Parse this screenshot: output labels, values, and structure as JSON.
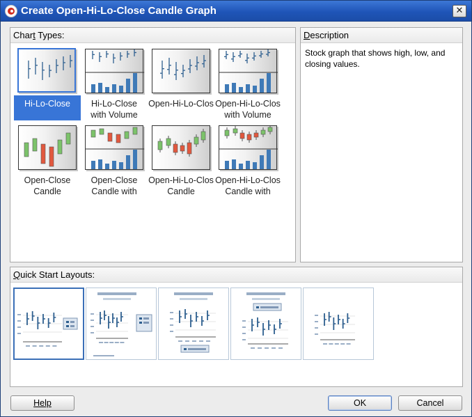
{
  "window": {
    "title": "Create Open-Hi-Lo-Close Candle Graph"
  },
  "chart_types": {
    "label": "Chart Types:",
    "items": [
      {
        "label": "Hi-Lo-Close",
        "icon": "hi-lo-close",
        "selected": true
      },
      {
        "label": "Hi-Lo-Close\nwith Volume",
        "icon": "hi-lo-close-volume",
        "selected": false
      },
      {
        "label": "Open-Hi-Lo-Clos",
        "icon": "open-hi-lo-close",
        "selected": false
      },
      {
        "label": "Open-Hi-Lo-Clos\nwith Volume",
        "icon": "open-hi-lo-close-volume",
        "selected": false
      },
      {
        "label": "Open-Close\nCandle",
        "icon": "open-close-candle",
        "selected": false
      },
      {
        "label": "Open-Close\nCandle with",
        "icon": "open-close-candle-volume",
        "selected": false
      },
      {
        "label": "Open-Hi-Lo-Clos\nCandle",
        "icon": "open-hi-lo-close-candle",
        "selected": false
      },
      {
        "label": "Open-Hi-Lo-Clos\nCandle with",
        "icon": "open-hi-lo-close-candle-volume",
        "selected": false
      }
    ]
  },
  "description": {
    "label": "Description",
    "text": "Stock graph that shows high, low, and closing values."
  },
  "quick_start": {
    "label": "Quick Start Layouts:",
    "layouts": [
      {
        "name": "legend-right",
        "selected": true
      },
      {
        "name": "title-legend-right",
        "selected": false
      },
      {
        "name": "title-legend-bottom",
        "selected": false
      },
      {
        "name": "title-legend-top",
        "selected": false
      },
      {
        "name": "plain",
        "selected": false
      }
    ]
  },
  "buttons": {
    "help": "Help",
    "ok": "OK",
    "cancel": "Cancel"
  },
  "colors": {
    "selection": "#3875d7",
    "stock_bar": "#2e5f8f",
    "candle_up": "#7cc36a",
    "candle_down": "#e2583e",
    "volume": "#3f7ab7"
  }
}
